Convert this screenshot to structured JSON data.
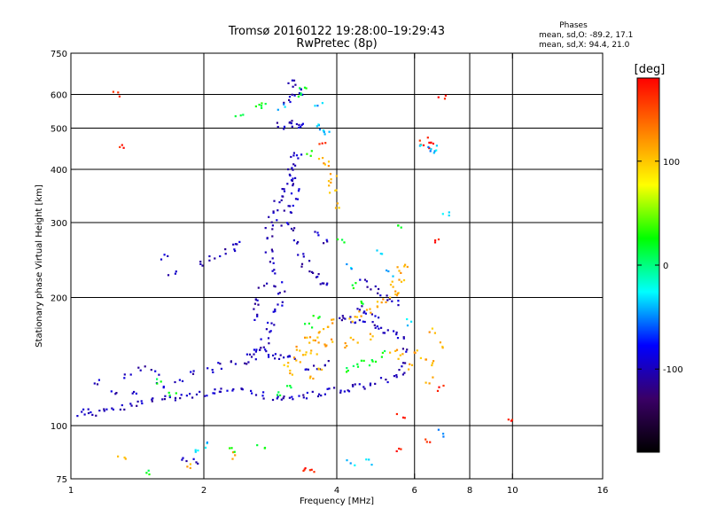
{
  "chart_data": {
    "type": "scatter",
    "title": "Tromsø 20160122 19:28:00–19:29:43",
    "subtitle": "RwPretec (8p)",
    "xlabel": "Frequency [MHz]",
    "ylabel": "Stationary phase Virtual Height [km]",
    "x_scale": "log",
    "y_scale": "log",
    "xlim": [
      1,
      16
    ],
    "ylim": [
      75,
      750
    ],
    "x_ticks": [
      1,
      2,
      4,
      6,
      8,
      10,
      16
    ],
    "x_tick_labels": [
      "1",
      "2",
      "4",
      "6",
      "8",
      "10",
      "16"
    ],
    "x_gridlines": [
      2,
      4,
      6,
      8,
      10
    ],
    "y_ticks": [
      75,
      100,
      200,
      300,
      400,
      500,
      600,
      750
    ],
    "y_tick_labels": [
      "75",
      "100",
      "200",
      "300",
      "400",
      "500",
      "600",
      "750"
    ],
    "y_gridlines": [
      100,
      200,
      300,
      400,
      500,
      600
    ],
    "grid": true,
    "legend": {
      "title": "Phases",
      "lines": [
        "mean, sd,O: -89.2, 17.1",
        "mean, sd,X:  94.4, 21.0"
      ],
      "placement": "top-right"
    },
    "colorbar": {
      "label": "[deg]",
      "ticks": [
        -100,
        0,
        100
      ],
      "tick_labels": [
        "-100",
        "0",
        "100"
      ],
      "range": [
        -180,
        180
      ],
      "colors": [
        "#000000",
        "#3a0066",
        "#0000ff",
        "#00ffff",
        "#00ff00",
        "#ffff00",
        "#ff8000",
        "#ff0000"
      ]
    },
    "series": [
      {
        "phase": -100,
        "points": [
          [
            1.05,
            107
          ],
          [
            1.08,
            108
          ],
          [
            1.12,
            107
          ],
          [
            1.17,
            108
          ],
          [
            1.22,
            109
          ],
          [
            1.3,
            110
          ],
          [
            1.38,
            111
          ],
          [
            1.45,
            113
          ],
          [
            1.52,
            115
          ],
          [
            1.6,
            116
          ],
          [
            1.7,
            117
          ],
          [
            1.8,
            118
          ],
          [
            1.9,
            118
          ],
          [
            2.0,
            119
          ],
          [
            2.1,
            120
          ],
          [
            2.2,
            121
          ],
          [
            2.3,
            121
          ],
          [
            2.45,
            120
          ],
          [
            2.6,
            119
          ],
          [
            2.75,
            118
          ],
          [
            2.9,
            116
          ],
          [
            3.0,
            115
          ],
          [
            3.15,
            116
          ],
          [
            3.3,
            117
          ],
          [
            3.45,
            118
          ],
          [
            3.6,
            119
          ],
          [
            3.8,
            120
          ],
          [
            4.0,
            121
          ],
          [
            4.2,
            122
          ],
          [
            4.4,
            123
          ],
          [
            4.6,
            124
          ],
          [
            4.85,
            126
          ],
          [
            5.1,
            128
          ],
          [
            5.35,
            131
          ],
          [
            5.6,
            133
          ],
          [
            1.6,
            124
          ],
          [
            1.75,
            128
          ],
          [
            1.9,
            132
          ],
          [
            2.05,
            135
          ],
          [
            2.2,
            138
          ],
          [
            2.35,
            140
          ],
          [
            2.5,
            142
          ],
          [
            2.6,
            145
          ],
          [
            2.7,
            150
          ],
          [
            2.75,
            158
          ],
          [
            2.8,
            166
          ],
          [
            2.85,
            175
          ],
          [
            2.9,
            185
          ],
          [
            2.95,
            195
          ],
          [
            3.0,
            205
          ],
          [
            2.95,
            215
          ],
          [
            2.9,
            230
          ],
          [
            2.85,
            245
          ],
          [
            2.82,
            260
          ],
          [
            2.8,
            275
          ],
          [
            2.82,
            290
          ],
          [
            2.86,
            305
          ],
          [
            2.9,
            320
          ],
          [
            2.95,
            335
          ],
          [
            3.0,
            350
          ],
          [
            3.05,
            365
          ],
          [
            3.1,
            380
          ],
          [
            3.15,
            395
          ],
          [
            3.2,
            410
          ],
          [
            3.22,
            425
          ],
          [
            3.25,
            440
          ],
          [
            2.55,
            148
          ],
          [
            2.65,
            152
          ],
          [
            2.75,
            149
          ],
          [
            2.85,
            146
          ],
          [
            2.95,
            144
          ],
          [
            3.05,
            143
          ],
          [
            3.15,
            145
          ],
          [
            3.05,
            300
          ],
          [
            3.1,
            315
          ],
          [
            3.15,
            330
          ],
          [
            3.2,
            345
          ],
          [
            3.25,
            360
          ],
          [
            3.22,
            375
          ],
          [
            3.2,
            290
          ],
          [
            3.25,
            270
          ],
          [
            3.3,
            250
          ],
          [
            3.4,
            240
          ],
          [
            3.5,
            232
          ],
          [
            3.6,
            224
          ],
          [
            3.7,
            218
          ],
          [
            3.8,
            212
          ],
          [
            3.0,
            505
          ],
          [
            3.1,
            510
          ],
          [
            3.2,
            512
          ],
          [
            3.3,
            510
          ],
          [
            3.35,
            505
          ],
          [
            3.15,
            640
          ],
          [
            3.25,
            625
          ],
          [
            3.3,
            610
          ],
          [
            3.2,
            595
          ],
          [
            3.1,
            580
          ],
          [
            2.0,
            240
          ],
          [
            2.1,
            248
          ],
          [
            2.2,
            255
          ],
          [
            2.3,
            262
          ],
          [
            2.4,
            268
          ],
          [
            3.6,
            285
          ],
          [
            3.75,
            270
          ],
          [
            4.05,
            180
          ],
          [
            4.2,
            178
          ],
          [
            4.4,
            176
          ],
          [
            4.6,
            175
          ],
          [
            4.8,
            172
          ],
          [
            5.0,
            170
          ],
          [
            5.2,
            168
          ],
          [
            5.45,
            166
          ],
          [
            5.6,
            160
          ],
          [
            5.65,
            150
          ],
          [
            5.6,
            140
          ],
          [
            4.6,
            218
          ],
          [
            4.8,
            212
          ],
          [
            5.0,
            206
          ],
          [
            5.2,
            200
          ],
          [
            5.4,
            195
          ],
          [
            4.5,
            190
          ],
          [
            4.7,
            185
          ],
          [
            4.9,
            182
          ],
          [
            3.4,
            135
          ],
          [
            3.6,
            138
          ],
          [
            3.8,
            141
          ],
          [
            1.45,
            137
          ],
          [
            1.55,
            133
          ],
          [
            1.35,
            130
          ],
          [
            1.25,
            120
          ],
          [
            1.4,
            118
          ],
          [
            1.15,
            126
          ],
          [
            1.7,
            226
          ],
          [
            1.62,
            248
          ],
          [
            1.8,
            84
          ],
          [
            1.9,
            82
          ],
          [
            2.6,
            180
          ],
          [
            2.65,
            190
          ],
          [
            2.68,
            200
          ],
          [
            2.72,
            212
          ]
        ]
      },
      {
        "phase": 110,
        "points": [
          [
            3.25,
            142
          ],
          [
            3.4,
            146
          ],
          [
            3.55,
            150
          ],
          [
            3.7,
            154
          ],
          [
            3.85,
            157
          ],
          [
            3.5,
            160
          ],
          [
            3.65,
            164
          ],
          [
            3.8,
            170
          ],
          [
            3.95,
            175
          ],
          [
            3.7,
            138
          ],
          [
            3.55,
            131
          ],
          [
            4.3,
            178
          ],
          [
            4.5,
            182
          ],
          [
            4.7,
            187
          ],
          [
            4.9,
            192
          ],
          [
            5.1,
            197
          ],
          [
            5.35,
            203
          ],
          [
            5.55,
            208
          ],
          [
            5.4,
            214
          ],
          [
            5.6,
            222
          ],
          [
            5.5,
            232
          ],
          [
            5.7,
            238
          ],
          [
            4.2,
            155
          ],
          [
            4.4,
            158
          ],
          [
            4.8,
            162
          ],
          [
            5.4,
            150
          ],
          [
            5.6,
            145
          ],
          [
            5.8,
            138
          ],
          [
            6.1,
            148
          ],
          [
            6.25,
            142
          ],
          [
            3.9,
            370
          ],
          [
            3.95,
            385
          ],
          [
            3.92,
            355
          ],
          [
            4.0,
            330
          ],
          [
            3.7,
            418
          ],
          [
            3.8,
            410
          ],
          [
            2.3,
            85
          ],
          [
            1.3,
            84
          ],
          [
            1.85,
            80
          ],
          [
            6.6,
            168
          ],
          [
            6.8,
            155
          ],
          [
            6.7,
            140
          ],
          [
            6.5,
            128
          ],
          [
            3.3,
            152
          ],
          [
            3.45,
            158
          ],
          [
            3.05,
            138
          ],
          [
            3.15,
            134
          ]
        ]
      },
      {
        "phase": 20,
        "points": [
          [
            2.65,
            573
          ],
          [
            2.7,
            562
          ],
          [
            2.4,
            540
          ],
          [
            3.25,
            600
          ],
          [
            3.35,
            612
          ],
          [
            2.3,
            87
          ],
          [
            1.5,
            78
          ],
          [
            1.6,
            128
          ],
          [
            1.7,
            118
          ],
          [
            4.25,
            135
          ],
          [
            4.45,
            138
          ],
          [
            4.65,
            141
          ],
          [
            4.85,
            144
          ],
          [
            5.05,
            147
          ],
          [
            4.35,
            214
          ],
          [
            4.55,
            196
          ],
          [
            4.1,
            270
          ],
          [
            3.6,
            180
          ],
          [
            3.45,
            172
          ],
          [
            2.7,
            90
          ],
          [
            3.45,
            435
          ],
          [
            5.5,
            290
          ],
          [
            2.95,
            118
          ],
          [
            3.1,
            124
          ]
        ]
      },
      {
        "phase": 170,
        "points": [
          [
            1.27,
            605
          ],
          [
            6.9,
            590
          ],
          [
            6.5,
            470
          ],
          [
            6.3,
            462
          ],
          [
            6.6,
            455
          ],
          [
            6.45,
            92
          ],
          [
            9.8,
            104
          ],
          [
            5.6,
            105
          ],
          [
            3.35,
            79
          ],
          [
            3.5,
            79
          ],
          [
            1.3,
            448
          ],
          [
            3.7,
            455
          ],
          [
            6.8,
            270
          ],
          [
            6.9,
            122
          ],
          [
            5.5,
            88
          ]
        ]
      },
      {
        "phase": -40,
        "points": [
          [
            3.0,
            560
          ],
          [
            3.65,
            575
          ],
          [
            3.6,
            515
          ],
          [
            3.7,
            492
          ],
          [
            3.8,
            482
          ],
          [
            6.3,
            452
          ],
          [
            6.55,
            445
          ],
          [
            6.7,
            448
          ],
          [
            7.1,
            315
          ],
          [
            5.0,
            258
          ],
          [
            4.3,
            235
          ],
          [
            5.3,
            228
          ],
          [
            5.8,
            175
          ],
          [
            6.9,
            96
          ],
          [
            2.05,
            90
          ],
          [
            1.95,
            88
          ],
          [
            4.3,
            82
          ],
          [
            4.7,
            82
          ]
        ]
      }
    ]
  }
}
